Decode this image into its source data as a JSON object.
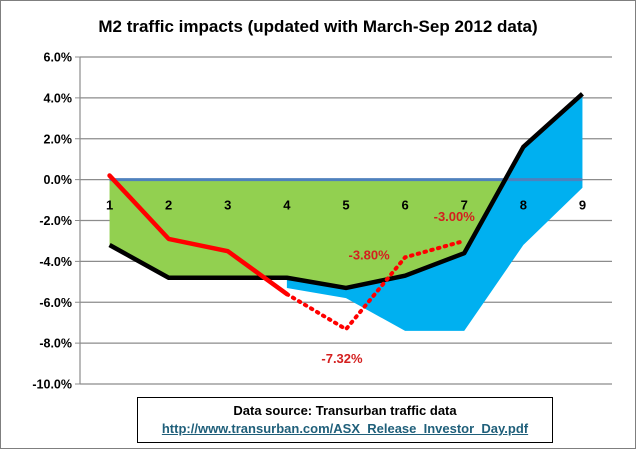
{
  "chart_data": {
    "type": "line",
    "title": "M2 traffic impacts (updated with March-Sep 2012 data)",
    "categories": [
      "1",
      "2",
      "3",
      "4",
      "5",
      "6",
      "7",
      "8",
      "9"
    ],
    "ylim": [
      -10.0,
      6.0
    ],
    "ytick_labels": [
      "6.0%",
      "4.0%",
      "2.0%",
      "0.0%",
      "-2.0%",
      "-4.0%",
      "-6.0%",
      "-8.0%",
      "-10.0%"
    ],
    "grid": true,
    "legend": "none",
    "series": [
      {
        "values": [
          0.0,
          0.0,
          0.0,
          0.0,
          0.0,
          0.0,
          0.0,
          0.0,
          -0.2
        ],
        "style": "green area"
      },
      {
        "values": [
          null,
          null,
          null,
          -5.3,
          -5.8,
          -7.4,
          -7.4,
          -3.2,
          -0.4
        ],
        "style": "blue area band"
      },
      {
        "values": [
          -3.2,
          -4.8,
          -4.8,
          -4.8,
          -5.3,
          -4.7,
          -3.6,
          1.6,
          4.2
        ],
        "style": "black line"
      },
      {
        "values": [
          0.2,
          -2.9,
          -3.5,
          -5.6,
          null,
          null,
          null,
          null,
          null
        ],
        "style": "red solid line"
      },
      {
        "values": [
          null,
          null,
          null,
          -5.6,
          -7.32,
          -3.8,
          -3.0,
          null,
          null
        ],
        "style": "red dotted line"
      }
    ],
    "annotations": [
      "-3.80%",
      "-3.00%",
      "-7.32%"
    ],
    "colors": {
      "green_area": "#92d050",
      "blue_area": "#00b0f0",
      "black_line": "#000000",
      "red_line": "#ff0000",
      "annotation": "#d41f1f"
    }
  },
  "source": {
    "text": "Data source:  Transurban traffic data",
    "url": "http://www.transurban.com/ASX_Release_Investor_Day.pdf"
  }
}
